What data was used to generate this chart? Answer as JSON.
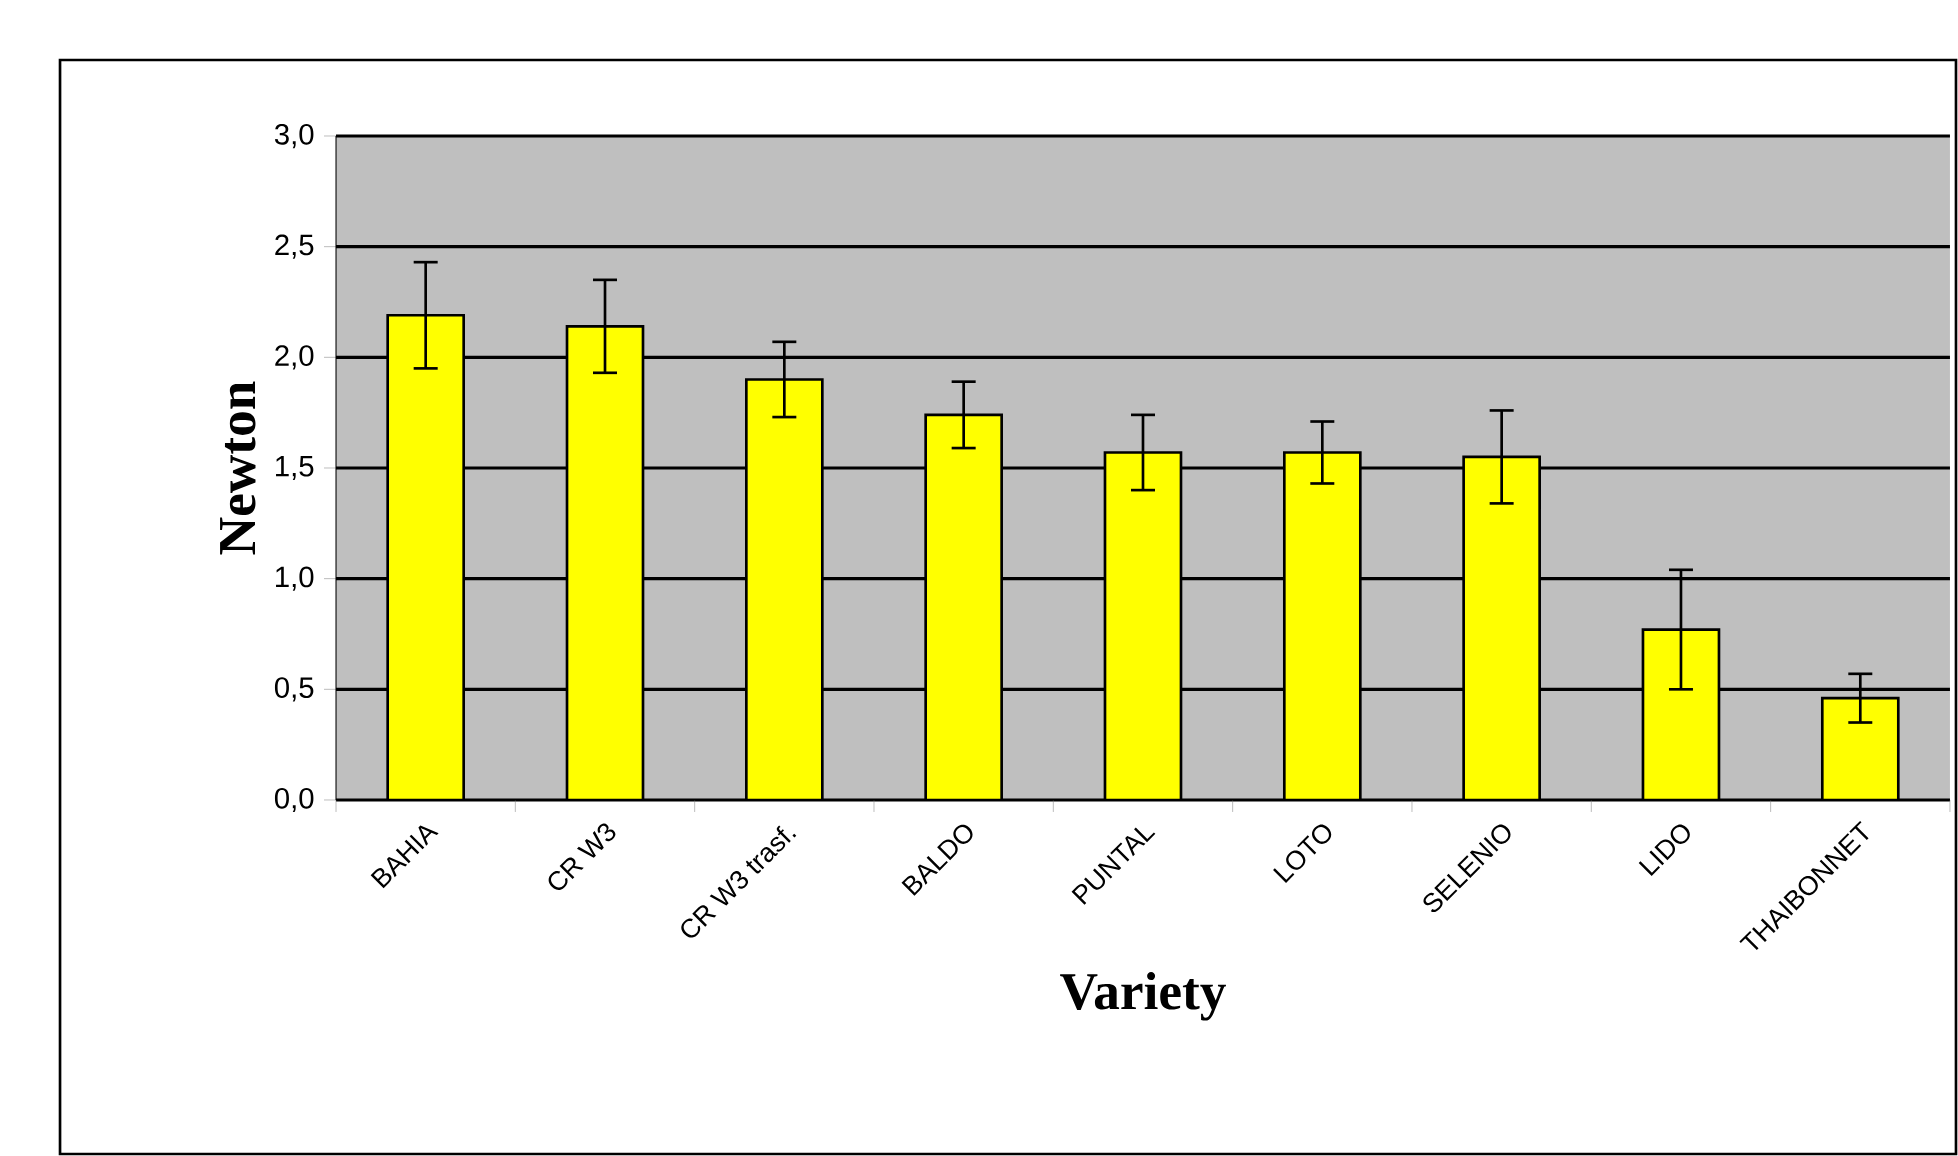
{
  "chart_data": {
    "type": "bar",
    "xlabel": "Variety",
    "ylabel": "Newton",
    "categories": [
      "BAHIA",
      "CR W3",
      "CR W3 trasf.",
      "BALDO",
      "PUNTAL",
      "LOTO",
      "SELENIO",
      "LIDO",
      "THAIBONNET"
    ],
    "values": [
      2.19,
      2.14,
      1.9,
      1.74,
      1.57,
      1.57,
      1.55,
      0.77,
      0.46
    ],
    "errors": [
      0.24,
      0.21,
      0.17,
      0.15,
      0.17,
      0.14,
      0.21,
      0.27,
      0.11
    ],
    "color": "#ffff00",
    "ylim": [
      0,
      3
    ],
    "yticks": [
      {
        "value": 0,
        "label": "0,0"
      },
      {
        "value": 0.5,
        "label": "0,5"
      },
      {
        "value": 1,
        "label": "1,0"
      },
      {
        "value": 1.5,
        "label": "1,5"
      },
      {
        "value": 2,
        "label": "2,0"
      },
      {
        "value": 2.5,
        "label": "2,5"
      },
      {
        "value": 3,
        "label": "3,0"
      }
    ],
    "grid": "y"
  }
}
